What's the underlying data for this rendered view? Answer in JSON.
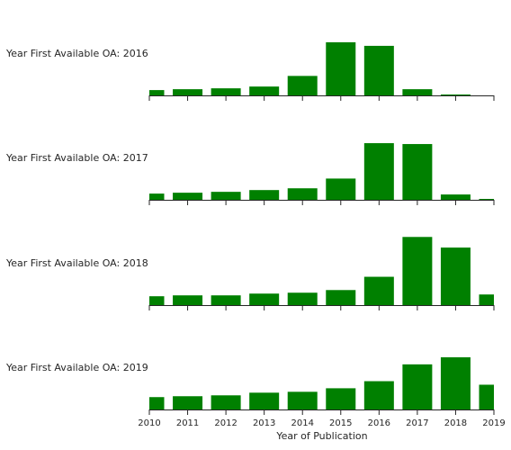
{
  "chart_data": {
    "type": "bar",
    "xlabel": "Year of Publication",
    "x_tick_labels": [
      "2010",
      "2011",
      "2012",
      "2013",
      "2014",
      "2015",
      "2016",
      "2017",
      "2018",
      "2019"
    ],
    "bar_color": "#008000",
    "panels": [
      {
        "label": "Year First Available OA: 2016",
        "categories": [
          "2010",
          "2011",
          "2012",
          "2013",
          "2014",
          "2015",
          "2016",
          "2017",
          "2018",
          "2019"
        ],
        "values": [
          6,
          7,
          8,
          10,
          22,
          60,
          56,
          7,
          1,
          0
        ]
      },
      {
        "label": "Year First Available OA: 2017",
        "categories": [
          "2010",
          "2011",
          "2012",
          "2013",
          "2014",
          "2015",
          "2016",
          "2017",
          "2018",
          "2019"
        ],
        "values": [
          7,
          8,
          9,
          11,
          13,
          24,
          64,
          63,
          6,
          1
        ]
      },
      {
        "label": "Year First Available OA: 2018",
        "categories": [
          "2010",
          "2011",
          "2012",
          "2013",
          "2014",
          "2015",
          "2016",
          "2017",
          "2018",
          "2019"
        ],
        "values": [
          10,
          11,
          11,
          13,
          14,
          17,
          32,
          77,
          65,
          12
        ]
      },
      {
        "label": "Year First Available OA: 2019",
        "categories": [
          "2010",
          "2011",
          "2012",
          "2013",
          "2014",
          "2015",
          "2016",
          "2017",
          "2018",
          "2019"
        ],
        "values": [
          14,
          15,
          16,
          19,
          20,
          24,
          32,
          51,
          59,
          28
        ]
      }
    ]
  }
}
